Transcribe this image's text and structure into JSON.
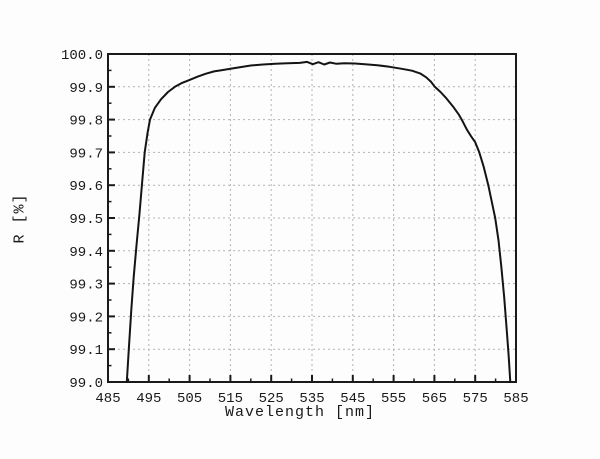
{
  "chart_data": {
    "type": "line",
    "title": "",
    "xlabel": "Wavelength [nm]",
    "ylabel": "R [%]",
    "xlim": [
      485,
      585
    ],
    "ylim": [
      99.0,
      100.0
    ],
    "x_major_step": 10,
    "x_minor_step": 5,
    "y_major_step": 0.1,
    "y_minor_step": 0.05,
    "x_tick_labels": [
      "485",
      "495",
      "505",
      "515",
      "525",
      "535",
      "545",
      "555",
      "565",
      "575",
      "585"
    ],
    "y_tick_labels": [
      "99.0",
      "99.1",
      "99.2",
      "99.3",
      "99.4",
      "99.5",
      "99.6",
      "99.7",
      "99.8",
      "99.9",
      "100.0"
    ],
    "grid": "dashed major gridlines, both axes, interior only",
    "legend": "none",
    "series": [
      {
        "name": "R",
        "color": "#141414",
        "points": [
          [
            489.6,
            99.0
          ],
          [
            490.1,
            99.1
          ],
          [
            490.7,
            99.22
          ],
          [
            491.3,
            99.32
          ],
          [
            492.0,
            99.42
          ],
          [
            492.7,
            99.51
          ],
          [
            493.3,
            99.6
          ],
          [
            494.0,
            99.7
          ],
          [
            494.7,
            99.76
          ],
          [
            495.3,
            99.8
          ],
          [
            496.5,
            99.836
          ],
          [
            498.0,
            99.862
          ],
          [
            499.7,
            99.884
          ],
          [
            501.4,
            99.9
          ],
          [
            503.0,
            99.911
          ],
          [
            505.0,
            99.921
          ],
          [
            507.0,
            99.931
          ],
          [
            509.0,
            99.94
          ],
          [
            511.0,
            99.947
          ],
          [
            513.0,
            99.951
          ],
          [
            515.0,
            99.955
          ],
          [
            517.5,
            99.96
          ],
          [
            520.0,
            99.965
          ],
          [
            523.0,
            99.968
          ],
          [
            526.0,
            99.97
          ],
          [
            529.0,
            99.972
          ],
          [
            532.0,
            99.973
          ],
          [
            533.8,
            99.976
          ],
          [
            535.2,
            99.969
          ],
          [
            536.6,
            99.975
          ],
          [
            538.0,
            99.968
          ],
          [
            539.4,
            99.974
          ],
          [
            541.0,
            99.97
          ],
          [
            543.0,
            99.972
          ],
          [
            545.5,
            99.971
          ],
          [
            548.0,
            99.969
          ],
          [
            551.0,
            99.966
          ],
          [
            554.0,
            99.961
          ],
          [
            557.0,
            99.955
          ],
          [
            559.5,
            99.949
          ],
          [
            561.5,
            99.941
          ],
          [
            563.0,
            99.929
          ],
          [
            564.2,
            99.915
          ],
          [
            565.1,
            99.9
          ],
          [
            566.5,
            99.884
          ],
          [
            568.0,
            99.864
          ],
          [
            569.5,
            99.841
          ],
          [
            571.0,
            99.815
          ],
          [
            571.7,
            99.8
          ],
          [
            573.0,
            99.769
          ],
          [
            574.0,
            99.749
          ],
          [
            575.0,
            99.731
          ],
          [
            576.0,
            99.7
          ],
          [
            577.1,
            99.655
          ],
          [
            578.2,
            99.6
          ],
          [
            579.1,
            99.548
          ],
          [
            579.9,
            99.5
          ],
          [
            580.7,
            99.432
          ],
          [
            581.4,
            99.352
          ],
          [
            582.1,
            99.258
          ],
          [
            582.8,
            99.148
          ],
          [
            583.2,
            99.078
          ],
          [
            583.6,
            99.0
          ]
        ]
      }
    ]
  },
  "colors": {
    "background": "#fdfdfd",
    "axis": "#1a1a1a",
    "grid": "#b3b3b3",
    "curve": "#141414",
    "text": "#1a1a1a"
  }
}
